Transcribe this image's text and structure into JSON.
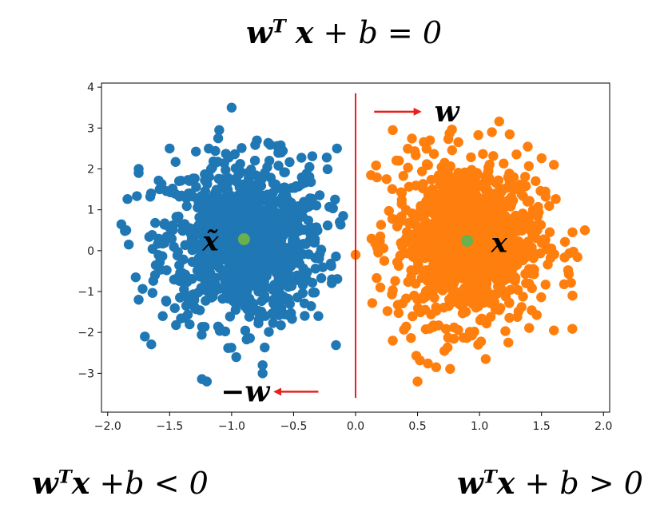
{
  "equations": {
    "top": {
      "w": "w",
      "T": "T",
      "x": "x",
      "plus": "+",
      "b": "b",
      "rel": "=",
      "rhs": "0"
    },
    "left": {
      "w": "w",
      "T": "T",
      "x": "x",
      "plus": "+",
      "b": "b",
      "rel": "<",
      "rhs": "0"
    },
    "right": {
      "w": "w",
      "T": "T",
      "x": "x",
      "plus": "+",
      "b": "b",
      "rel": ">",
      "rhs": "0"
    }
  },
  "labels": {
    "w_arrow": "w",
    "neg_w_arrow": "−w",
    "x_tilde": "x̃",
    "x_point": "x"
  },
  "colors": {
    "blue_class": "#1f77b4",
    "orange_class": "#ff7f0e",
    "centroid": "#6ab04c",
    "boundary": "#e8201c",
    "arrow": "#e8201c"
  },
  "chart_data": {
    "type": "scatter",
    "xlim": [
      -2.05,
      2.05
    ],
    "ylim": [
      -3.95,
      4.1
    ],
    "xticks": [
      -2.0,
      -1.5,
      -1.0,
      -0.5,
      0.0,
      0.5,
      1.0,
      1.5,
      2.0
    ],
    "xtick_labels": [
      "−2.0",
      "−1.5",
      "−1.0",
      "−0.5",
      "0.0",
      "0.5",
      "1.0",
      "1.5",
      "2.0"
    ],
    "yticks": [
      -3,
      -2,
      -1,
      0,
      1,
      2,
      3,
      4
    ],
    "ytick_labels": [
      "−3",
      "−2",
      "−1",
      "0",
      "1",
      "2",
      "3",
      "4"
    ],
    "grid": false,
    "series": [
      {
        "color": "#1f77b4",
        "center": [
          -0.9,
          0.25
        ],
        "spread": [
          0.33,
          1.0
        ],
        "count": 1000
      },
      {
        "color": "#ff7f0e",
        "center": [
          0.9,
          0.25
        ],
        "spread": [
          0.3,
          1.0
        ],
        "count": 1000
      }
    ],
    "outliers_blue": [
      [
        -1.85,
        0.5
      ],
      [
        -1.83,
        0.15
      ],
      [
        -1.75,
        2.0
      ],
      [
        -1.75,
        1.9
      ],
      [
        -1.0,
        3.5
      ],
      [
        -1.1,
        2.95
      ],
      [
        -0.15,
        2.5
      ],
      [
        -0.1,
        0.85
      ],
      [
        -1.2,
        -3.2
      ],
      [
        -0.75,
        -3.0
      ],
      [
        -0.75,
        -2.8
      ],
      [
        -1.5,
        2.5
      ],
      [
        -1.65,
        1.4
      ],
      [
        -1.75,
        -1.2
      ],
      [
        -1.7,
        -2.1
      ],
      [
        -0.6,
        2.4
      ],
      [
        -0.3,
        -1.6
      ]
    ],
    "outliers_orange": [
      [
        0.3,
        2.95
      ],
      [
        0.6,
        2.7
      ],
      [
        1.1,
        2.9
      ],
      [
        0.0,
        -0.1
      ],
      [
        1.85,
        0.5
      ],
      [
        1.75,
        0.45
      ],
      [
        0.3,
        -2.2
      ],
      [
        0.5,
        -3.2
      ],
      [
        0.65,
        -2.85
      ],
      [
        1.75,
        -1.1
      ],
      [
        1.6,
        -1.95
      ],
      [
        1.6,
        2.1
      ],
      [
        0.25,
        1.75
      ],
      [
        0.2,
        0.35
      ],
      [
        0.35,
        2.2
      ],
      [
        1.05,
        -2.65
      ],
      [
        0.2,
        -0.9
      ]
    ],
    "centroids": [
      [
        -0.9,
        0.28
      ],
      [
        0.9,
        0.24
      ]
    ],
    "boundary_x": 0.0,
    "boundary_y": [
      -3.6,
      3.85
    ],
    "w_arrow": {
      "from": [
        0.15,
        3.4
      ],
      "to": [
        0.52,
        3.4
      ]
    },
    "neg_w_arrow": {
      "from": [
        -0.3,
        -3.45
      ],
      "to": [
        -0.65,
        -3.45
      ]
    }
  }
}
